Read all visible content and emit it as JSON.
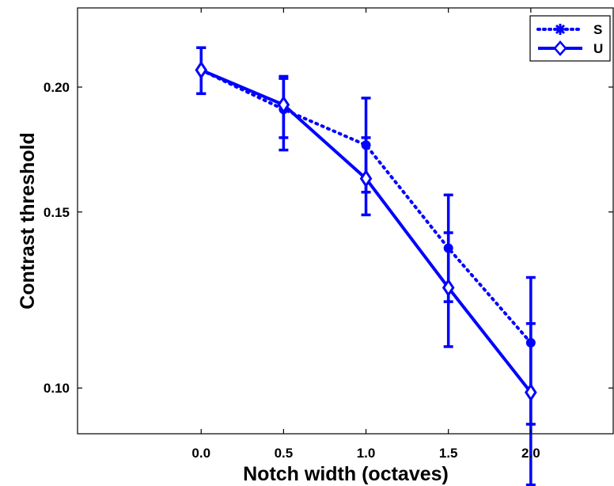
{
  "chart_data": {
    "type": "line",
    "xlabel": "Notch width (octaves)",
    "ylabel": "Contrast threshold",
    "x": [
      0.0,
      0.5,
      1.0,
      1.5,
      2.0
    ],
    "x_tick_labels": [
      "0.0",
      "0.5",
      "1.0",
      "1.5",
      "2.0"
    ],
    "xlim": [
      -0.75,
      2.5
    ],
    "ylim": [
      0.09,
      0.24
    ],
    "y_scale": "log",
    "y_ticks": [
      0.1,
      0.15,
      0.2
    ],
    "y_tick_labels": [
      "0.10",
      "0.15",
      "0.20"
    ],
    "legend_position": "top-right",
    "grid": false,
    "series": [
      {
        "name": "S",
        "values": [
          0.208,
          0.19,
          0.175,
          0.138,
          0.111
        ],
        "error_low": [
          0.197,
          0.178,
          0.157,
          0.122,
          0.092
        ],
        "error_high": [
          0.219,
          0.204,
          0.195,
          0.156,
          0.129
        ],
        "color": "#0000ff",
        "line_style": "dotted",
        "marker": "circle",
        "legend_marker": "asterisk"
      },
      {
        "name": "U",
        "values": [
          0.208,
          0.192,
          0.162,
          0.126,
          0.099
        ],
        "error_low": [
          0.197,
          0.173,
          0.149,
          0.11,
          0.08
        ],
        "error_high": [
          0.219,
          0.205,
          0.178,
          0.143,
          0.116
        ],
        "color": "#0000ff",
        "line_style": "solid",
        "marker": "diamond",
        "legend_marker": "diamond"
      }
    ]
  }
}
